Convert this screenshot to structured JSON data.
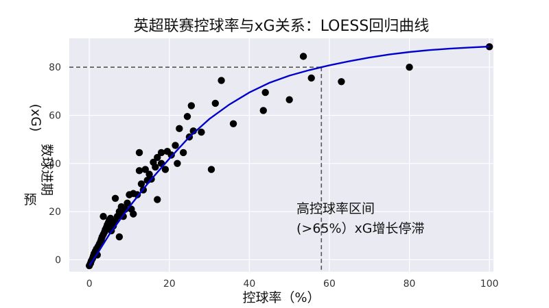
{
  "chart_data": {
    "type": "scatter",
    "title": "英超联赛控球率与xG关系：LOESS回归曲线",
    "xlabel": "控球率（%）",
    "ylabel_lines": [
      "数球进期",
      "预",
      "(xG)"
    ],
    "xlim": [
      -5,
      101
    ],
    "ylim": [
      -5,
      92
    ],
    "x_ticks": [
      0,
      20,
      40,
      60,
      80,
      100
    ],
    "y_ticks": [
      0,
      20,
      40,
      60,
      80
    ],
    "grid": true,
    "colors": {
      "points": "#000000",
      "curve": "#0000cc",
      "background": "#eaeaf2",
      "reference": "#555555"
    },
    "points": [
      [
        0,
        -2.5
      ],
      [
        0.3,
        -1.5
      ],
      [
        0.5,
        -0.5
      ],
      [
        0.8,
        0.5
      ],
      [
        1,
        1.5
      ],
      [
        1.2,
        2.5
      ],
      [
        1.5,
        3.5
      ],
      [
        1.8,
        4.5
      ],
      [
        2,
        2
      ],
      [
        2.2,
        5.5
      ],
      [
        2.5,
        6.5
      ],
      [
        2.8,
        7.5
      ],
      [
        3,
        8.5
      ],
      [
        3.2,
        9.5
      ],
      [
        3.5,
        10.5
      ],
      [
        3.8,
        11.5
      ],
      [
        4,
        12.5
      ],
      [
        4.3,
        13.5
      ],
      [
        4.5,
        14.5
      ],
      [
        4.8,
        15.5
      ],
      [
        5,
        16.5
      ],
      [
        5.3,
        17.2
      ],
      [
        3.5,
        18
      ],
      [
        5.5,
        12
      ],
      [
        6,
        14
      ],
      [
        6.5,
        16
      ],
      [
        7,
        18
      ],
      [
        7.5,
        20
      ],
      [
        8,
        22
      ],
      [
        6.5,
        25.5
      ],
      [
        7.5,
        9.5
      ],
      [
        8,
        19
      ],
      [
        8.5,
        18
      ],
      [
        9,
        21
      ],
      [
        9.5,
        23.5
      ],
      [
        10,
        27
      ],
      [
        10.5,
        21
      ],
      [
        11,
        19
      ],
      [
        11,
        27.5
      ],
      [
        12,
        27
      ],
      [
        12.5,
        44.5
      ],
      [
        12.5,
        37
      ],
      [
        13,
        31.5
      ],
      [
        13.5,
        29
      ],
      [
        14,
        37.5
      ],
      [
        14.5,
        33
      ],
      [
        15,
        35.5
      ],
      [
        15.5,
        33.5
      ],
      [
        16,
        40.5
      ],
      [
        16.5,
        38.5
      ],
      [
        17,
        25
      ],
      [
        17,
        42.5
      ],
      [
        18,
        40
      ],
      [
        18,
        44.5
      ],
      [
        19,
        37.5
      ],
      [
        19.5,
        45
      ],
      [
        20.5,
        43.5
      ],
      [
        21.5,
        47.5
      ],
      [
        22,
        40
      ],
      [
        22.5,
        54.5
      ],
      [
        23.5,
        44.5
      ],
      [
        24.5,
        59.5
      ],
      [
        25,
        51
      ],
      [
        25.5,
        64
      ],
      [
        26,
        53.5
      ],
      [
        28,
        53
      ],
      [
        30.5,
        37.5
      ],
      [
        31.5,
        65
      ],
      [
        33,
        74.5
      ],
      [
        36,
        56.5
      ],
      [
        43.5,
        62
      ],
      [
        44,
        69.5
      ],
      [
        50,
        66.5
      ],
      [
        53.5,
        84.5
      ],
      [
        55.5,
        75.5
      ],
      [
        63,
        74
      ],
      [
        80,
        80
      ],
      [
        100,
        88.5
      ]
    ],
    "curve": [
      [
        0,
        -2.5
      ],
      [
        2,
        2.5
      ],
      [
        5,
        10.5
      ],
      [
        10,
        22
      ],
      [
        15,
        32.5
      ],
      [
        20,
        42
      ],
      [
        25,
        51
      ],
      [
        30,
        58.5
      ],
      [
        35,
        64.5
      ],
      [
        40,
        69.5
      ],
      [
        45,
        73.5
      ],
      [
        50,
        76.5
      ],
      [
        55,
        78.8
      ],
      [
        58,
        80
      ],
      [
        60,
        80.8
      ],
      [
        65,
        82.5
      ],
      [
        70,
        84
      ],
      [
        75,
        85.3
      ],
      [
        80,
        86.3
      ],
      [
        85,
        87.1
      ],
      [
        90,
        87.7
      ],
      [
        95,
        88.2
      ],
      [
        100,
        88.6
      ]
    ],
    "reference_point": {
      "x": 58,
      "y": 80
    },
    "annotation": {
      "lines": [
        "高控球率区间",
        "(>65%）xG增长停滞"
      ],
      "x": 65,
      "y": 20
    }
  }
}
